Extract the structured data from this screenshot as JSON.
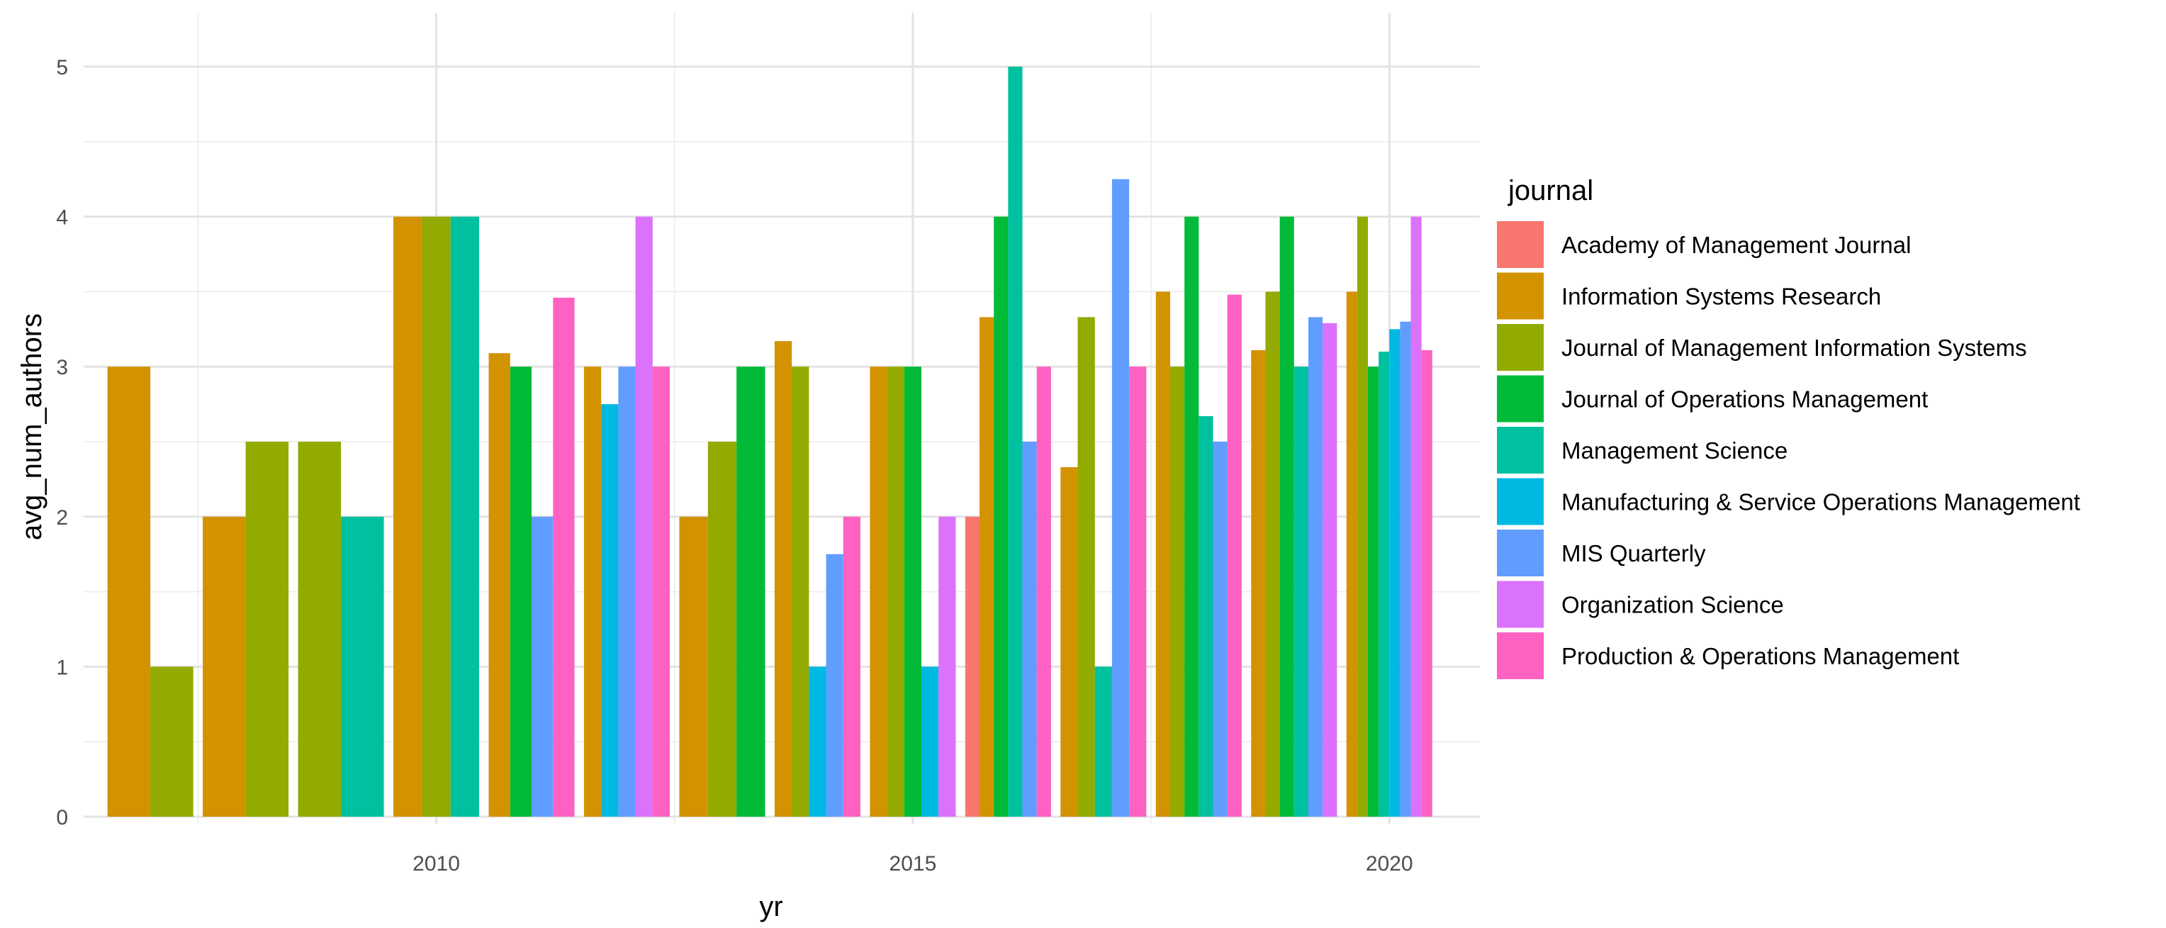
{
  "chart_data": {
    "type": "bar",
    "title": "",
    "xlabel": "yr",
    "ylabel": "avg_num_authors",
    "x_tick_labels": [
      "2010",
      "2015",
      "2020"
    ],
    "x_ticks": [
      2010,
      2015,
      2020
    ],
    "y_tick_labels": [
      "0",
      "1",
      "2",
      "3",
      "4",
      "5"
    ],
    "y_ticks": [
      0,
      1,
      2,
      3,
      4,
      5
    ],
    "xlim": [
      2006.3,
      2020.95
    ],
    "ylim": [
      0,
      5
    ],
    "grid": true,
    "legend_title": "journal",
    "legend_position": "right",
    "categories": [
      2007,
      2008,
      2009,
      2010,
      2011,
      2012,
      2013,
      2014,
      2015,
      2016,
      2017,
      2018,
      2019,
      2020
    ],
    "series": [
      {
        "name": "Academy of Management Journal",
        "color": "#F8766D",
        "values": [
          null,
          null,
          null,
          null,
          null,
          null,
          null,
          null,
          null,
          2,
          null,
          null,
          null,
          null
        ]
      },
      {
        "name": "Information Systems Research",
        "color": "#D39200",
        "values": [
          3,
          2,
          null,
          4,
          3.09,
          3,
          2,
          3.17,
          3,
          3.33,
          2.33,
          3.5,
          3.11,
          3.5
        ]
      },
      {
        "name": "Journal of Management Information Systems",
        "color": "#93AA00",
        "values": [
          1,
          2.5,
          2.5,
          4,
          null,
          null,
          2.5,
          3,
          3,
          null,
          3.33,
          3,
          3.5,
          4
        ]
      },
      {
        "name": "Journal of Operations Management",
        "color": "#00BA38",
        "values": [
          null,
          null,
          null,
          null,
          3,
          null,
          3,
          null,
          3,
          4,
          null,
          4,
          4,
          3
        ]
      },
      {
        "name": "Management Science",
        "color": "#00C19F",
        "values": [
          null,
          null,
          2,
          4,
          null,
          null,
          null,
          null,
          null,
          5,
          1,
          2.67,
          3,
          3.1
        ]
      },
      {
        "name": "Manufacturing & Service Operations Management",
        "color": "#00B9E3",
        "values": [
          null,
          null,
          null,
          null,
          null,
          2.75,
          null,
          1,
          1,
          null,
          null,
          null,
          null,
          3.25
        ]
      },
      {
        "name": "MIS Quarterly",
        "color": "#619CFF",
        "values": [
          null,
          null,
          null,
          null,
          2,
          3,
          null,
          1.75,
          null,
          2.5,
          4.25,
          2.5,
          3.33,
          3.3
        ]
      },
      {
        "name": "Organization Science",
        "color": "#DB72FB",
        "values": [
          null,
          null,
          null,
          null,
          null,
          4,
          null,
          null,
          2,
          null,
          null,
          null,
          3.29,
          4
        ]
      },
      {
        "name": "Production & Operations Management",
        "color": "#FF61C3",
        "values": [
          null,
          null,
          null,
          null,
          3.46,
          3,
          null,
          2,
          null,
          3,
          3,
          3.48,
          null,
          3.11
        ]
      }
    ]
  }
}
